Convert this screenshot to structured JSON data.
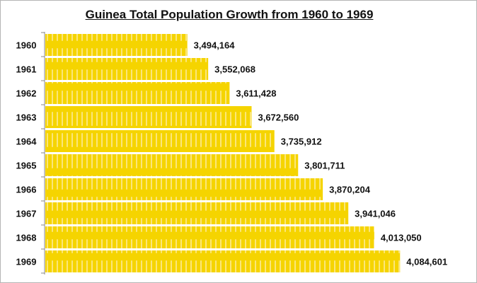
{
  "chart_data": {
    "type": "bar",
    "orientation": "horizontal",
    "title": "Guinea Total Population Growth from 1960 to 1969",
    "categories": [
      "1960",
      "1961",
      "1962",
      "1963",
      "1964",
      "1965",
      "1966",
      "1967",
      "1968",
      "1969"
    ],
    "values": [
      3494164,
      3552068,
      3611428,
      3672560,
      3735912,
      3801711,
      3870204,
      3941046,
      4013050,
      4084601
    ],
    "data_labels": [
      "3,494,164",
      "3,552,068",
      "3,611,428",
      "3,672,560",
      "3,735,912",
      "3,801,711",
      "3,870,204",
      "3,941,046",
      "4,013,050",
      "4,084,601"
    ],
    "xlabel": "",
    "ylabel": "",
    "xlim": [
      3100000,
      4200000
    ],
    "grid": false,
    "legend": "none",
    "bar_color": "#f5d400",
    "stripe_color": "#fbe67a"
  }
}
